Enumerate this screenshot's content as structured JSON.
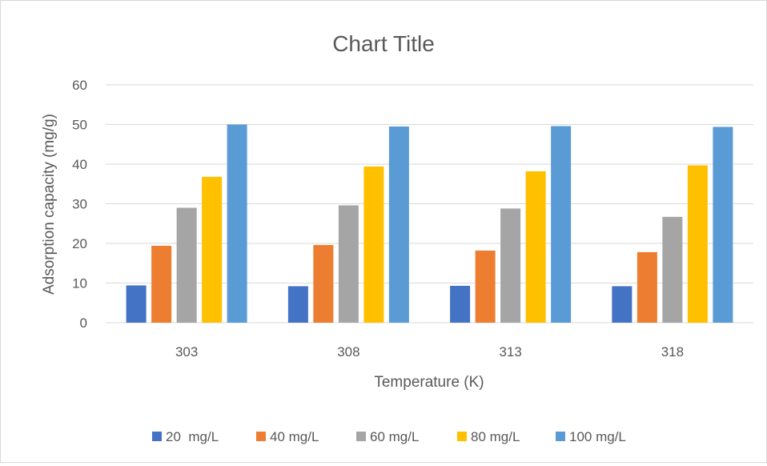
{
  "chart_data": {
    "type": "bar",
    "title": "Chart Title",
    "xlabel": "Temperature (K)",
    "ylabel": "Adsorption capacity (mg/g)",
    "categories": [
      "303",
      "308",
      "313",
      "318"
    ],
    "ylim": [
      0,
      60
    ],
    "yticks": [
      0,
      10,
      20,
      30,
      40,
      50,
      60
    ],
    "grid": true,
    "legend_position": "bottom",
    "series": [
      {
        "name": "20  mg/L",
        "color": "#4472c4",
        "values": [
          9.4,
          9.2,
          9.3,
          9.2
        ]
      },
      {
        "name": "40 mg/L",
        "color": "#ed7d31",
        "values": [
          19.4,
          19.6,
          18.2,
          17.8
        ]
      },
      {
        "name": "60 mg/L",
        "color": "#a5a5a5",
        "values": [
          29.0,
          29.6,
          28.8,
          26.7
        ]
      },
      {
        "name": "80 mg/L",
        "color": "#ffc000",
        "values": [
          36.8,
          39.4,
          38.2,
          39.7
        ]
      },
      {
        "name": "100 mg/L",
        "color": "#5b9bd5",
        "values": [
          50.0,
          49.5,
          49.6,
          49.4
        ]
      }
    ]
  }
}
